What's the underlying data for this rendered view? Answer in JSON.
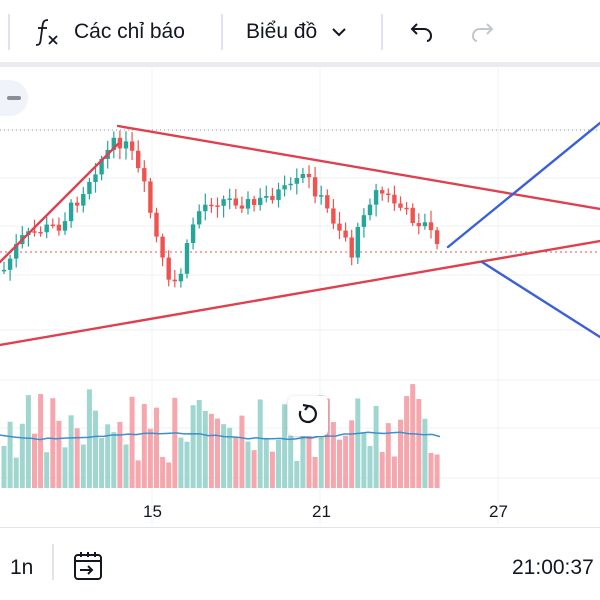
{
  "toolbar": {
    "indicators_label": "Các chỉ báo",
    "chart_type_label": "Biểu đồ",
    "icons": [
      "function-icon",
      "chevron-down-icon",
      "undo-icon",
      "redo-icon"
    ]
  },
  "time_axis": {
    "ticks": [
      "15",
      "21",
      "27"
    ]
  },
  "bottom_bar": {
    "interval": "1n",
    "clock": "21:00:37"
  },
  "colors": {
    "up": "#26a69a",
    "down": "#ef5350",
    "trendline": "#e0404e",
    "projection": "#3a5fd9",
    "volume_ma": "#3d8fd1",
    "volume_up": "#9fd6cf",
    "volume_down": "#f6a7ad"
  }
}
